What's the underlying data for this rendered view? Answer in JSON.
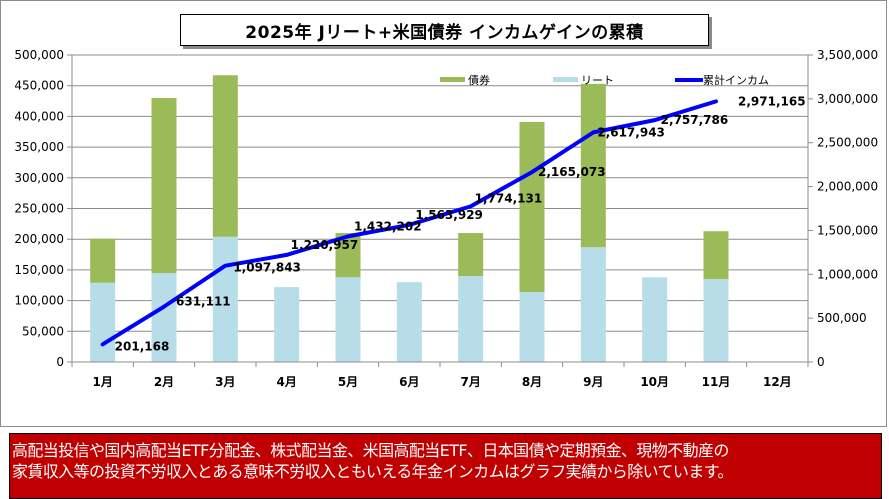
{
  "colors": {
    "bond": "#9bbb59",
    "reit": "#b7dde8",
    "cumulative": "#0000ff",
    "note_bg": "#c00000",
    "grid": "#8c8c8c"
  },
  "note": {
    "line1": "高配当投信や国内高配当ETF分配金、株式配当金、米国高配当ETF、日本国債や定期預金、現物不動産の",
    "line2": "家賃収入等の投資不労収入とある意味不労収入ともいえる年金インカムはグラフ実績から除いています。"
  },
  "chart_data": {
    "type": "bar",
    "subtype": "stacked bar + line (secondary axis)",
    "title": "2025年  Jリート+米国債券 インカムゲインの累積",
    "categories": [
      "1月",
      "2月",
      "3月",
      "4月",
      "5月",
      "6月",
      "7月",
      "8月",
      "9月",
      "10月",
      "11月",
      "12月"
    ],
    "series": [
      {
        "name": "リート",
        "type": "bar",
        "stack": "income",
        "axis": "left",
        "values": [
          129000,
          145000,
          204000,
          122000,
          138000,
          130000,
          140000,
          114000,
          187000,
          138000,
          135000,
          null
        ]
      },
      {
        "name": "債券",
        "type": "bar",
        "stack": "income",
        "axis": "left",
        "values": [
          72000,
          285000,
          263000,
          0,
          72000,
          0,
          70000,
          277000,
          266000,
          0,
          78000,
          null
        ]
      },
      {
        "name": "累計インカム",
        "type": "line",
        "axis": "right",
        "values": [
          201168,
          631111,
          1097843,
          1220957,
          1432202,
          1563929,
          1774131,
          2165073,
          2617943,
          2757786,
          2971165,
          null
        ],
        "labels": [
          "201,168",
          "631,111",
          "1,097,843",
          "1,220,957",
          "1,432,202",
          "1,563,929",
          "1,774,131",
          "2,165,073",
          "2,617,943",
          "2,757,786",
          "2,971,165"
        ]
      }
    ],
    "legend": [
      "債券",
      "リート",
      "累計インカム"
    ],
    "legend_position": "top-right",
    "left_axis": {
      "ylim": [
        0,
        500000
      ],
      "ticks": [
        "0",
        "50,000",
        "100,000",
        "150,000",
        "200,000",
        "250,000",
        "300,000",
        "350,000",
        "400,000",
        "450,000",
        "500,000"
      ]
    },
    "right_axis": {
      "ylim": [
        0,
        3500000
      ],
      "ticks": [
        "0",
        "500,000",
        "1,000,000",
        "1,500,000",
        "2,000,000",
        "2,500,000",
        "3,000,000",
        "3,500,000"
      ]
    },
    "grid": true,
    "xlabel": "",
    "ylabel": ""
  }
}
